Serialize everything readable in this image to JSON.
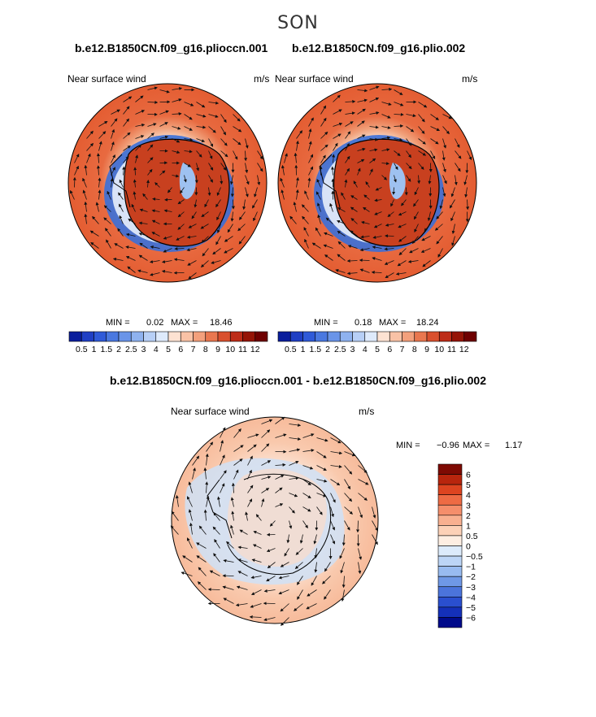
{
  "season": "SON",
  "panels": [
    {
      "case": "b.e12.B1850CN.f09_g16.plioccn.001",
      "field": "Near surface wind",
      "units": "m/s",
      "min_label": "MIN =",
      "min": "0.02",
      "max_label": "MAX =",
      "max": "18.46"
    },
    {
      "case": "b.e12.B1850CN.f09_g16.plio.002",
      "field": "Near surface wind",
      "units": "m/s",
      "min_label": "MIN =",
      "min": "0.18",
      "max_label": "MAX =",
      "max": "18.24"
    }
  ],
  "diff": {
    "title": "b.e12.B1850CN.f09_g16.plioccn.001 - b.e12.B1850CN.f09_g16.plio.002",
    "field": "Near surface wind",
    "units": "m/s",
    "min_label": "MIN =",
    "min": "−0.96",
    "max_label": "MAX =",
    "max": "1.17"
  },
  "colorbar_abs": {
    "labels": [
      "0.5",
      "1",
      "1.5",
      "2",
      "2.5",
      "3",
      "4",
      "5",
      "6",
      "7",
      "8",
      "9",
      "10",
      "11",
      "12"
    ],
    "colors": [
      "#0a1e9c",
      "#1f3fc4",
      "#2f5ad8",
      "#4a78e0",
      "#6a94e8",
      "#8fb2ef",
      "#b7cff6",
      "#deeafb",
      "#fde2d2",
      "#f9c2a6",
      "#f3a07c",
      "#e9774f",
      "#d9502e",
      "#bd2c18",
      "#951406",
      "#6e0000"
    ]
  },
  "colorbar_diff": {
    "labels": [
      "6",
      "5",
      "4",
      "3",
      "2",
      "1",
      "0.5",
      "0",
      "−0.5",
      "−1",
      "−2",
      "−3",
      "−4",
      "−5",
      "−6"
    ],
    "colors": [
      "#7e0a03",
      "#b8250d",
      "#dd4420",
      "#ee6b44",
      "#f58e6b",
      "#f8b090",
      "#fcd1b7",
      "#fdeee2",
      "#dcebfb",
      "#bcd5f6",
      "#98bbf0",
      "#6f98e6",
      "#4b74db",
      "#2a4fcf",
      "#1430b9",
      "#000a8a"
    ]
  },
  "map_colors": {
    "abs_panels": [
      "#d84d2a",
      "#ee6e45",
      "#f59a74",
      "#fbc9ad",
      "#e9f0fb",
      "#9ec1f0",
      "#3a6fd8",
      "#1c48c0"
    ],
    "diff_panel": [
      "#f9cbb0",
      "#fbdcc9",
      "#cfe0f6",
      "#aecbf1"
    ]
  },
  "icons": {
    "wind_arrow": "arrow-icon",
    "coastline": "antarctica-coastline"
  }
}
